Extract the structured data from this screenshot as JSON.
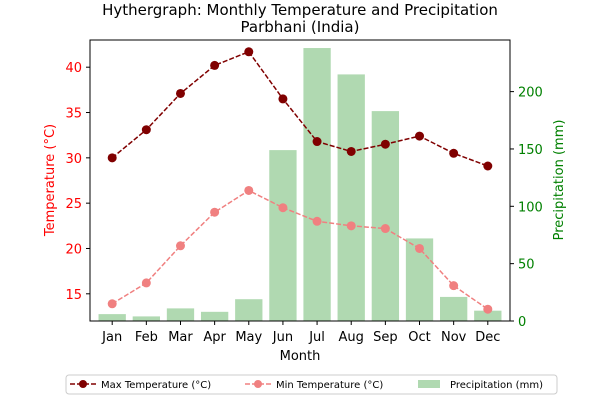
{
  "chart_data": {
    "type": "line",
    "title": "Hythergraph: Monthly Temperature and Precipitation",
    "subtitle": "Parbhani (India)",
    "xlabel": "Month",
    "ylabel_left": "Temperature (°C)",
    "ylabel_right": "Precipitation (mm)",
    "categories": [
      "Jan",
      "Feb",
      "Mar",
      "Apr",
      "May",
      "Jun",
      "Jul",
      "Aug",
      "Sep",
      "Oct",
      "Nov",
      "Dec"
    ],
    "ylim_left": [
      12,
      43
    ],
    "ylim_right": [
      0,
      245
    ],
    "yticks_left": [
      15,
      20,
      25,
      30,
      35,
      40
    ],
    "yticks_right": [
      0,
      50,
      100,
      150,
      200
    ],
    "grid": false,
    "legend_position": "bottom",
    "series": [
      {
        "name": "Max Temperature (°C)",
        "axis": "left",
        "kind": "line",
        "style": "dashed",
        "marker": "circle",
        "color": "#800000",
        "values": [
          30.0,
          33.1,
          37.1,
          40.2,
          41.7,
          36.5,
          31.8,
          30.7,
          31.5,
          32.4,
          30.5,
          29.1
        ]
      },
      {
        "name": "Min Temperature (°C)",
        "axis": "left",
        "kind": "line",
        "style": "dashed",
        "marker": "circle",
        "color": "#f08080",
        "values": [
          13.9,
          16.2,
          20.3,
          24.0,
          26.4,
          24.5,
          23.0,
          22.5,
          22.2,
          20.0,
          15.9,
          13.3
        ]
      },
      {
        "name": "Precipitation (mm)",
        "axis": "right",
        "kind": "bar",
        "color": "#b0d9b1",
        "values": [
          6,
          4,
          11,
          8,
          19,
          149,
          238,
          215,
          183,
          72,
          21,
          9
        ]
      }
    ]
  },
  "colors": {
    "left_axis": "#ff0000",
    "right_axis": "#008000",
    "axis": "#000000"
  }
}
